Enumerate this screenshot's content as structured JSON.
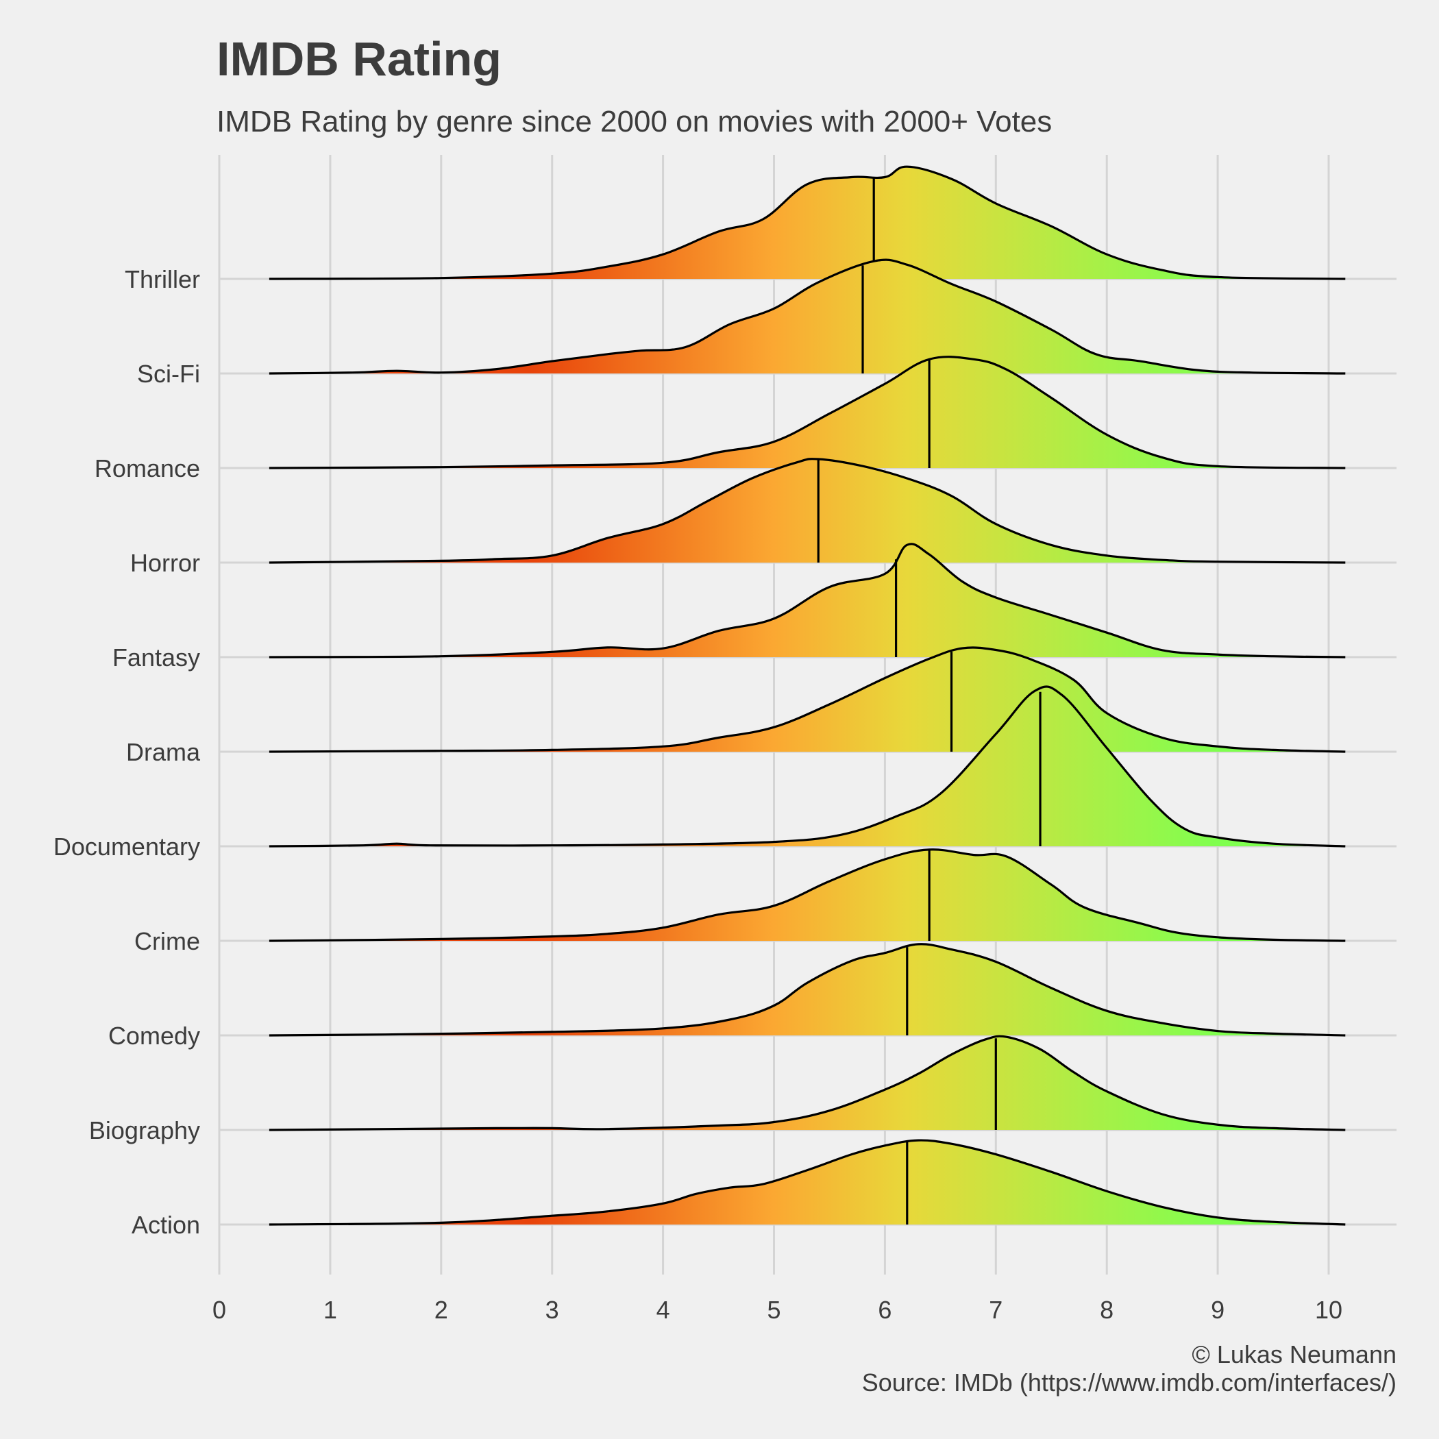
{
  "chart_data": {
    "type": "ridgeline",
    "title": "IMDB Rating",
    "subtitle": "IMDB Rating by genre since 2000 on movies with 2000+ Votes",
    "caption_lines": [
      "© Lukas Neumann",
      "Source: IMDb (https://www.imdb.com/interfaces/)"
    ],
    "xlim": [
      0,
      10
    ],
    "x_ticks": [
      "0",
      "1",
      "2",
      "3",
      "4",
      "5",
      "6",
      "7",
      "8",
      "9",
      "10"
    ],
    "x_range_curves": [
      0.45,
      10.15
    ],
    "grid": true,
    "fill_gradient": {
      "low_color": "#e8430a",
      "mid_color": "#fba832",
      "mid2_color": "#e8d83a",
      "high_color": "#7fff4f",
      "stops": [
        2.8,
        5.0,
        6.2,
        9.0
      ]
    },
    "series": [
      {
        "name": "Action",
        "median": 6.2,
        "points": [
          [
            0.45,
            0
          ],
          [
            2,
            0.02
          ],
          [
            3,
            0.1
          ],
          [
            3.5,
            0.15
          ],
          [
            4,
            0.24
          ],
          [
            4.3,
            0.35
          ],
          [
            4.6,
            0.42
          ],
          [
            4.9,
            0.46
          ],
          [
            5.3,
            0.62
          ],
          [
            5.7,
            0.8
          ],
          [
            6.0,
            0.9
          ],
          [
            6.3,
            0.96
          ],
          [
            6.6,
            0.92
          ],
          [
            7.0,
            0.8
          ],
          [
            7.5,
            0.6
          ],
          [
            8.0,
            0.38
          ],
          [
            8.5,
            0.2
          ],
          [
            9.0,
            0.08
          ],
          [
            9.5,
            0.03
          ],
          [
            10.15,
            0
          ]
        ]
      },
      {
        "name": "Biography",
        "median": 7.0,
        "points": [
          [
            0.45,
            0
          ],
          [
            1.5,
            0.01
          ],
          [
            2.5,
            0.02
          ],
          [
            3.0,
            0.02
          ],
          [
            3.5,
            0.01
          ],
          [
            4.5,
            0.05
          ],
          [
            5.0,
            0.09
          ],
          [
            5.5,
            0.22
          ],
          [
            6.0,
            0.46
          ],
          [
            6.3,
            0.64
          ],
          [
            6.6,
            0.86
          ],
          [
            6.9,
            1.03
          ],
          [
            7.1,
            1.06
          ],
          [
            7.4,
            0.92
          ],
          [
            7.7,
            0.66
          ],
          [
            8.0,
            0.44
          ],
          [
            8.5,
            0.18
          ],
          [
            9.0,
            0.06
          ],
          [
            9.5,
            0.02
          ],
          [
            10.15,
            0
          ]
        ]
      },
      {
        "name": "Comedy",
        "median": 6.2,
        "points": [
          [
            0.45,
            0
          ],
          [
            1.5,
            0.01
          ],
          [
            3,
            0.04
          ],
          [
            4,
            0.08
          ],
          [
            4.6,
            0.18
          ],
          [
            5.0,
            0.34
          ],
          [
            5.3,
            0.6
          ],
          [
            5.7,
            0.85
          ],
          [
            6.0,
            0.94
          ],
          [
            6.3,
            1.04
          ],
          [
            6.6,
            0.98
          ],
          [
            7.0,
            0.84
          ],
          [
            7.5,
            0.54
          ],
          [
            8.0,
            0.28
          ],
          [
            8.5,
            0.14
          ],
          [
            9.0,
            0.05
          ],
          [
            9.5,
            0.02
          ],
          [
            10.15,
            0
          ]
        ]
      },
      {
        "name": "Crime",
        "median": 6.4,
        "points": [
          [
            0.45,
            0
          ],
          [
            2,
            0.02
          ],
          [
            3,
            0.05
          ],
          [
            3.5,
            0.08
          ],
          [
            4,
            0.15
          ],
          [
            4.5,
            0.3
          ],
          [
            5.0,
            0.4
          ],
          [
            5.5,
            0.68
          ],
          [
            6.0,
            0.93
          ],
          [
            6.4,
            1.04
          ],
          [
            6.8,
            0.98
          ],
          [
            7.1,
            0.96
          ],
          [
            7.5,
            0.64
          ],
          [
            7.8,
            0.38
          ],
          [
            8.3,
            0.2
          ],
          [
            8.7,
            0.08
          ],
          [
            9.3,
            0.02
          ],
          [
            10.15,
            0
          ]
        ]
      },
      {
        "name": "Documentary",
        "median": 7.4,
        "points": [
          [
            0.45,
            0
          ],
          [
            1.3,
            0.01
          ],
          [
            1.6,
            0.03
          ],
          [
            1.9,
            0.01
          ],
          [
            3,
            0.01
          ],
          [
            4,
            0.02
          ],
          [
            5,
            0.05
          ],
          [
            5.6,
            0.13
          ],
          [
            6.1,
            0.34
          ],
          [
            6.5,
            0.6
          ],
          [
            7.0,
            1.28
          ],
          [
            7.35,
            1.77
          ],
          [
            7.6,
            1.72
          ],
          [
            8.0,
            1.12
          ],
          [
            8.4,
            0.52
          ],
          [
            8.7,
            0.2
          ],
          [
            9.0,
            0.1
          ],
          [
            9.5,
            0.03
          ],
          [
            10.15,
            0
          ]
        ]
      },
      {
        "name": "Drama",
        "median": 6.6,
        "points": [
          [
            0.45,
            0
          ],
          [
            2,
            0.01
          ],
          [
            3,
            0.02
          ],
          [
            4,
            0.06
          ],
          [
            4.5,
            0.16
          ],
          [
            5.0,
            0.28
          ],
          [
            5.5,
            0.54
          ],
          [
            6.0,
            0.84
          ],
          [
            6.4,
            1.06
          ],
          [
            6.7,
            1.18
          ],
          [
            7.0,
            1.16
          ],
          [
            7.3,
            1.06
          ],
          [
            7.7,
            0.82
          ],
          [
            8.0,
            0.44
          ],
          [
            8.5,
            0.16
          ],
          [
            9.0,
            0.06
          ],
          [
            9.5,
            0.02
          ],
          [
            10.15,
            0
          ]
        ]
      },
      {
        "name": "Fantasy",
        "median": 6.1,
        "points": [
          [
            0.45,
            0
          ],
          [
            2,
            0.01
          ],
          [
            3,
            0.06
          ],
          [
            3.5,
            0.11
          ],
          [
            4,
            0.1
          ],
          [
            4.5,
            0.3
          ],
          [
            5.0,
            0.44
          ],
          [
            5.5,
            0.8
          ],
          [
            6.0,
            0.95
          ],
          [
            6.2,
            1.28
          ],
          [
            6.4,
            1.17
          ],
          [
            6.7,
            0.86
          ],
          [
            7.0,
            0.68
          ],
          [
            7.5,
            0.48
          ],
          [
            8.0,
            0.28
          ],
          [
            8.5,
            0.08
          ],
          [
            9.0,
            0.03
          ],
          [
            9.5,
            0.01
          ],
          [
            10.15,
            0
          ]
        ]
      },
      {
        "name": "Horror",
        "median": 5.4,
        "points": [
          [
            0.45,
            0
          ],
          [
            2,
            0.02
          ],
          [
            2.5,
            0.04
          ],
          [
            3,
            0.08
          ],
          [
            3.5,
            0.28
          ],
          [
            4,
            0.44
          ],
          [
            4.4,
            0.7
          ],
          [
            4.8,
            0.96
          ],
          [
            5.2,
            1.14
          ],
          [
            5.4,
            1.18
          ],
          [
            5.8,
            1.1
          ],
          [
            6.2,
            0.96
          ],
          [
            6.6,
            0.76
          ],
          [
            7.0,
            0.44
          ],
          [
            7.5,
            0.2
          ],
          [
            8.0,
            0.08
          ],
          [
            8.5,
            0.03
          ],
          [
            9.0,
            0.01
          ],
          [
            10.15,
            0
          ]
        ]
      },
      {
        "name": "Romance",
        "median": 6.4,
        "points": [
          [
            0.45,
            0
          ],
          [
            2,
            0.01
          ],
          [
            3,
            0.03
          ],
          [
            4,
            0.06
          ],
          [
            4.5,
            0.18
          ],
          [
            5.0,
            0.3
          ],
          [
            5.5,
            0.62
          ],
          [
            6.0,
            0.96
          ],
          [
            6.4,
            1.24
          ],
          [
            6.8,
            1.24
          ],
          [
            7.1,
            1.12
          ],
          [
            7.5,
            0.8
          ],
          [
            8.0,
            0.38
          ],
          [
            8.5,
            0.12
          ],
          [
            9.0,
            0.02
          ],
          [
            10.15,
            0
          ]
        ]
      },
      {
        "name": "Sci-Fi",
        "median": 5.8,
        "points": [
          [
            0.45,
            0
          ],
          [
            1.2,
            0.01
          ],
          [
            1.6,
            0.03
          ],
          [
            2.0,
            0.01
          ],
          [
            2.5,
            0.05
          ],
          [
            3.0,
            0.14
          ],
          [
            3.5,
            0.22
          ],
          [
            3.8,
            0.26
          ],
          [
            4.2,
            0.3
          ],
          [
            4.6,
            0.56
          ],
          [
            5.0,
            0.74
          ],
          [
            5.4,
            1.04
          ],
          [
            5.9,
            1.28
          ],
          [
            6.2,
            1.24
          ],
          [
            6.6,
            1.02
          ],
          [
            7.0,
            0.82
          ],
          [
            7.5,
            0.5
          ],
          [
            7.9,
            0.22
          ],
          [
            8.3,
            0.14
          ],
          [
            8.8,
            0.04
          ],
          [
            9.3,
            0.01
          ],
          [
            10.15,
            0
          ]
        ]
      },
      {
        "name": "Thriller",
        "median": 5.9,
        "points": [
          [
            0.45,
            0
          ],
          [
            2,
            0.01
          ],
          [
            3,
            0.06
          ],
          [
            3.5,
            0.14
          ],
          [
            4,
            0.28
          ],
          [
            4.5,
            0.54
          ],
          [
            4.9,
            0.68
          ],
          [
            5.3,
            1.08
          ],
          [
            5.7,
            1.16
          ],
          [
            6.0,
            1.16
          ],
          [
            6.2,
            1.28
          ],
          [
            6.6,
            1.14
          ],
          [
            7.0,
            0.86
          ],
          [
            7.5,
            0.6
          ],
          [
            8.0,
            0.28
          ],
          [
            8.5,
            0.1
          ],
          [
            9.0,
            0.02
          ],
          [
            10.15,
            0
          ]
        ]
      }
    ]
  }
}
